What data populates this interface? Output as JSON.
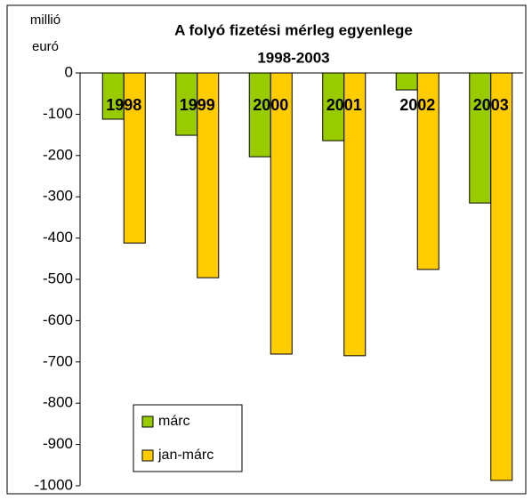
{
  "chart_data": {
    "type": "bar",
    "title": "A folyó fizetési mérleg egyenlege",
    "subtitle": "1998-2003",
    "ylabel": "millió euró",
    "categories": [
      "1998",
      "1999",
      "2000",
      "2001",
      "2002",
      "2003"
    ],
    "series": [
      {
        "name": "márc",
        "color": "#99cc00",
        "values": [
          -112,
          -151,
          -203,
          -164,
          -41,
          -315
        ]
      },
      {
        "name": "jan-márc",
        "color": "#ffcc00",
        "values": [
          -412,
          -496,
          -681,
          -685,
          -476,
          -987
        ]
      }
    ],
    "ylim": [
      -1000,
      0
    ],
    "yticks": [
      0,
      -100,
      -200,
      -300,
      -400,
      -500,
      -600,
      -700,
      -800,
      -900,
      -1000
    ],
    "grid": false,
    "legend": "lower left"
  }
}
